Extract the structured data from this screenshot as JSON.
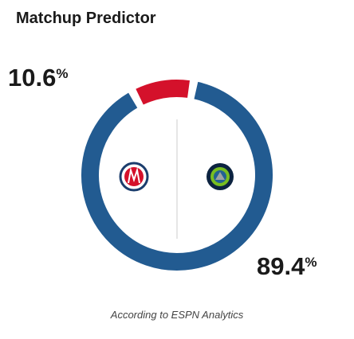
{
  "chart_data": {
    "type": "donut",
    "title": "Matchup Predictor",
    "values": [
      10.6,
      89.4
    ],
    "value_labels": [
      "10.6%",
      "89.4%"
    ],
    "colors": [
      "#d4112b",
      "#225b91"
    ],
    "caption": "According to ESPN Analytics"
  }
}
